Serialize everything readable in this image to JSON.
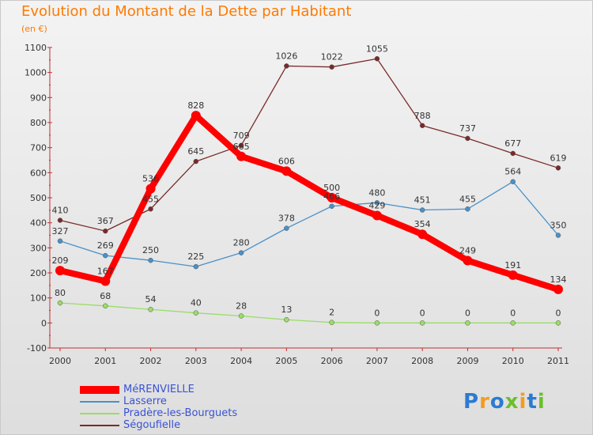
{
  "header": {
    "title": "Evolution du Montant de la Dette par Habitant",
    "subtitle": "(en €)"
  },
  "logo": {
    "text": "Proxiti",
    "letters": [
      {
        "ch": "P",
        "color": "#2b7bd1"
      },
      {
        "ch": "r",
        "color": "#f39c1d"
      },
      {
        "ch": "o",
        "color": "#2b7bd1"
      },
      {
        "ch": "x",
        "color": "#6bbf2a"
      },
      {
        "ch": "i",
        "color": "#f39c1d"
      },
      {
        "ch": "t",
        "color": "#2b7bd1"
      },
      {
        "ch": "i",
        "color": "#6bbf2a"
      }
    ]
  },
  "chart_data": {
    "type": "line",
    "title": "Evolution du Montant de la Dette par Habitant",
    "subtitle": "(en €)",
    "x": [
      "2000",
      "2001",
      "2002",
      "2003",
      "2004",
      "2005",
      "2006",
      "2007",
      "2008",
      "2009",
      "2010",
      "2011"
    ],
    "ylim": [
      -100,
      1100
    ],
    "yticks": [
      -100,
      0,
      100,
      200,
      300,
      400,
      500,
      600,
      700,
      800,
      900,
      1000,
      1100
    ],
    "grid": false,
    "legend_position": "bottom-left",
    "series": [
      {
        "name": "MéRENVIELLE",
        "color": "#ff0000",
        "values": [
          209,
          167,
          536,
          828,
          665,
          606,
          500,
          429,
          354,
          249,
          191,
          134
        ],
        "labels": [
          "209",
          "167",
          "536",
          "828",
          "665",
          "606",
          "500",
          "429",
          "354",
          "249",
          "191",
          "134"
        ]
      },
      {
        "name": "Lasserre",
        "color": "#4a90c8",
        "values": [
          327,
          269,
          250,
          225,
          280,
          378,
          466,
          480,
          451,
          455,
          564,
          350
        ],
        "labels": [
          "327",
          "269",
          "250",
          "225",
          "280",
          "378",
          "466",
          "480",
          "451",
          "455",
          "564",
          "350"
        ]
      },
      {
        "name": "Pradère-les-Bourguets",
        "color": "#99dd66",
        "values": [
          80,
          68,
          54,
          40,
          28,
          13,
          2,
          0,
          0,
          0,
          0,
          0
        ],
        "labels": [
          "80",
          "68",
          "54",
          "40",
          "28",
          "13",
          "2",
          "0",
          "0",
          "0",
          "0",
          "0"
        ]
      },
      {
        "name": "Ségoufielle",
        "color": "#7a2a2a",
        "values": [
          410,
          367,
          455,
          645,
          709,
          1026,
          1022,
          1055,
          788,
          737,
          677,
          619
        ],
        "labels": [
          "410",
          "367",
          "455",
          "645",
          "709",
          "1026",
          "1022",
          "1055",
          "788",
          "737",
          "677",
          "619"
        ]
      }
    ]
  }
}
